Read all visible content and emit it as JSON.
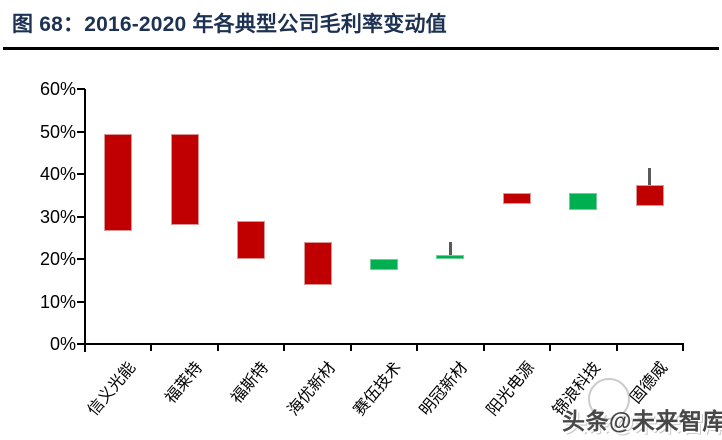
{
  "title": "图 68：2016-2020 年各典型公司毛利率变动值",
  "watermark": "头条@未来智库",
  "chart_data": {
    "type": "candlestick",
    "title": "2016-2020 年各典型公司毛利率变动值",
    "xlabel": "",
    "ylabel": "毛利率变动值",
    "ylim": [
      0,
      60
    ],
    "y_tick_step": 10,
    "y_tick_labels": [
      "0%",
      "10%",
      "20%",
      "30%",
      "40%",
      "50%",
      "60%"
    ],
    "grid": false,
    "legend_position": "none",
    "categories": [
      "信义光能",
      "福莱特",
      "福斯特",
      "海优新材",
      "赛伍技术",
      "明冠新材",
      "阳光电源",
      "锦浪科技",
      "固德威"
    ],
    "series": [
      {
        "name": "信义光能",
        "bar_low": 26.5,
        "bar_high": 49.5,
        "direction": "up"
      },
      {
        "name": "福莱特",
        "bar_low": 28,
        "bar_high": 49.5,
        "direction": "up"
      },
      {
        "name": "福斯特",
        "bar_low": 20,
        "bar_high": 29,
        "direction": "up"
      },
      {
        "name": "海优新材",
        "bar_low": 14,
        "bar_high": 24,
        "direction": "up"
      },
      {
        "name": "赛伍技术",
        "bar_low": 17.5,
        "bar_high": 20,
        "direction": "down"
      },
      {
        "name": "明冠新材",
        "bar_low": 20,
        "bar_high": 21,
        "direction": "down",
        "whisker_high": 24
      },
      {
        "name": "阳光电源",
        "bar_low": 33,
        "bar_high": 35.5,
        "direction": "up"
      },
      {
        "name": "锦浪科技",
        "bar_low": 31.5,
        "bar_high": 35.5,
        "direction": "down"
      },
      {
        "name": "固德威",
        "bar_low": 32.5,
        "bar_high": 37.5,
        "direction": "up",
        "whisker_high": 41.5
      }
    ],
    "colors": {
      "up": "#c00000",
      "up_border": "#d99694",
      "down": "#00b050",
      "down_border": "#6fcd96",
      "whisker": "#595959",
      "title": "#1d3153",
      "axis": "#000000"
    }
  }
}
